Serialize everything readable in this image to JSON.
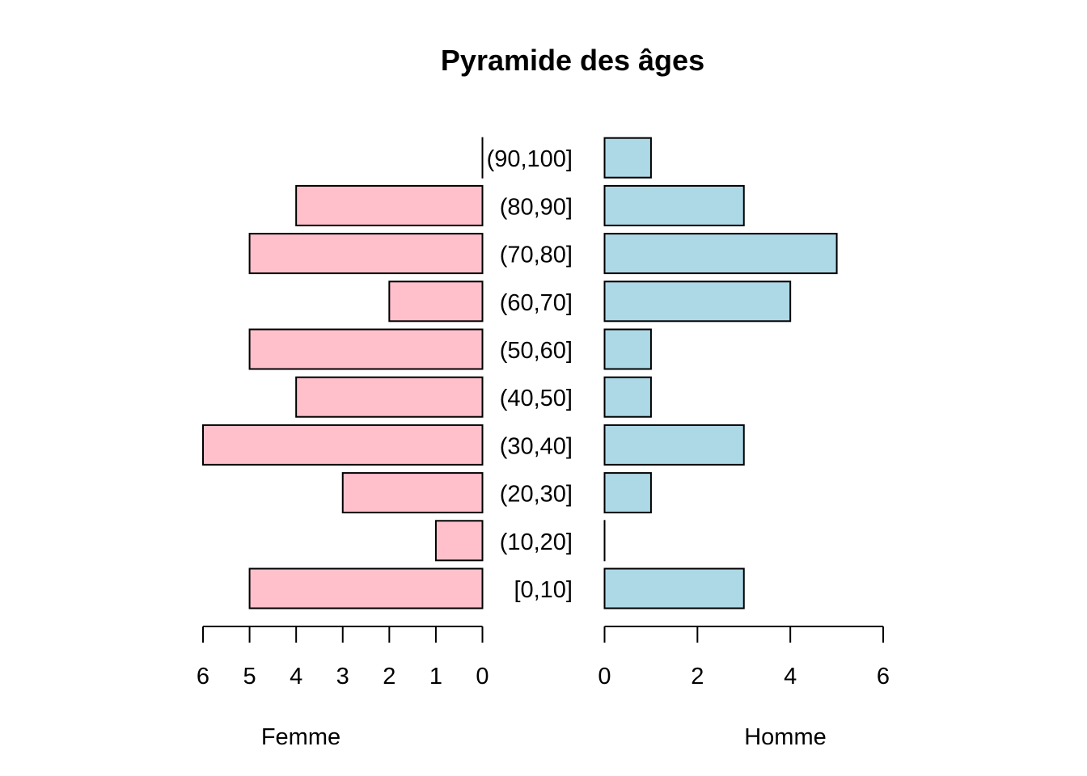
{
  "chart_data": {
    "type": "bar",
    "title": "Pyramide des âges",
    "categories": [
      "[0,10]",
      "(10,20]",
      "(20,30]",
      "(30,40]",
      "(40,50]",
      "(50,60]",
      "(60,70]",
      "(70,80]",
      "(80,90]",
      "(90,100]"
    ],
    "series": [
      {
        "name": "Femme",
        "values": [
          5,
          1,
          3,
          6,
          4,
          5,
          2,
          5,
          4,
          0
        ],
        "color": "#FFC0CB",
        "xlim": [
          0,
          6
        ],
        "ticks": [
          0,
          1,
          2,
          3,
          4,
          5,
          6
        ]
      },
      {
        "name": "Homme",
        "values": [
          3,
          0,
          1,
          3,
          1,
          1,
          4,
          5,
          3,
          1
        ],
        "color": "#ADD8E6",
        "xlim": [
          0,
          6
        ],
        "ticks": [
          0,
          2,
          4,
          6
        ]
      }
    ],
    "grid": false
  }
}
